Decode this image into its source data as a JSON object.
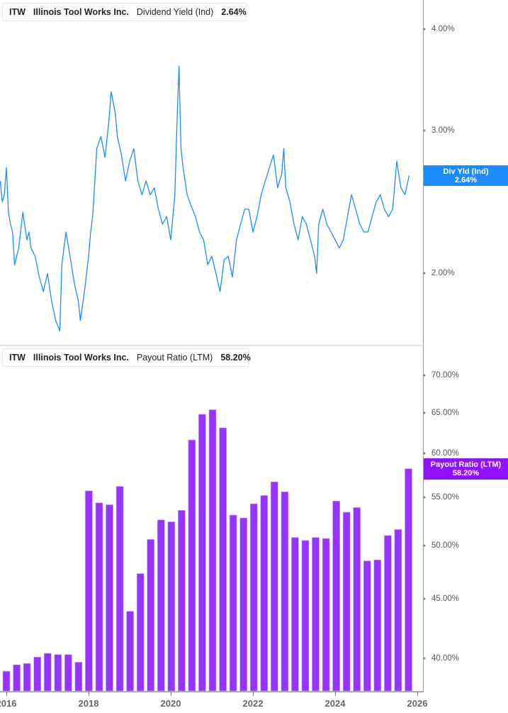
{
  "colors": {
    "yield": "#1a8cff",
    "payout": "#9633ff",
    "flag_yield": "#1a8cff",
    "flag_payout": "#9013fe"
  },
  "top_legend": {
    "ticker": "ITW",
    "company": "Illinois Tool Works Inc.",
    "metric": "Dividend Yield (Ind)",
    "value": "2.64%"
  },
  "bottom_legend": {
    "ticker": "ITW",
    "company": "Illinois Tool Works Inc.",
    "metric": "Payout Ratio (LTM)",
    "value": "58.20%"
  },
  "top_flag": {
    "line1": "Div Yld (Ind)",
    "line2": "2.64%"
  },
  "bottom_flag": {
    "line1": "Payout Ratio (LTM)",
    "line2": "58.20%"
  },
  "top_axis": {
    "ticks": [
      {
        "label": "4.00%",
        "value": 4.0
      },
      {
        "label": "3.00%",
        "value": 3.0
      },
      {
        "label": "2.00%",
        "value": 2.0
      }
    ]
  },
  "bottom_axis": {
    "ticks": [
      {
        "label": "70.00%",
        "value": 70
      },
      {
        "label": "65.00%",
        "value": 65
      },
      {
        "label": "60.00%",
        "value": 60
      },
      {
        "label": "55.00%",
        "value": 55
      },
      {
        "label": "50.00%",
        "value": 50
      },
      {
        "label": "45.00%",
        "value": 45
      },
      {
        "label": "40.00%",
        "value": 40
      }
    ]
  },
  "x_axis": {
    "ticks": [
      "2016",
      "2018",
      "2020",
      "2022",
      "2024",
      "2026"
    ]
  },
  "chart_data": [
    {
      "type": "line",
      "title": "ITW Illinois Tool Works Inc. Dividend Yield (Ind)",
      "xlabel": "",
      "ylabel": "Dividend Yield (Ind)",
      "yscale": "log",
      "ylim": [
        1.5,
        4.3
      ],
      "xlim": [
        2015.85,
        2026.1
      ],
      "grid": false,
      "legend_position": "top-left",
      "last_value": 2.64,
      "series": [
        {
          "name": "Dividend Yield (Ind)",
          "x": [
            2015.85,
            2015.9,
            2015.95,
            2016.0,
            2016.05,
            2016.1,
            2016.15,
            2016.2,
            2016.3,
            2016.4,
            2016.5,
            2016.55,
            2016.6,
            2016.7,
            2016.8,
            2016.9,
            2017.0,
            2017.1,
            2017.2,
            2017.3,
            2017.35,
            2017.45,
            2017.55,
            2017.65,
            2017.75,
            2017.8,
            2017.9,
            2018.0,
            2018.05,
            2018.1,
            2018.2,
            2018.3,
            2018.4,
            2018.5,
            2018.55,
            2018.65,
            2018.7,
            2018.8,
            2018.9,
            2019.0,
            2019.1,
            2019.2,
            2019.3,
            2019.4,
            2019.5,
            2019.6,
            2019.7,
            2019.8,
            2019.9,
            2020.0,
            2020.1,
            2020.15,
            2020.2,
            2020.25,
            2020.3,
            2020.4,
            2020.5,
            2020.6,
            2020.7,
            2020.8,
            2020.9,
            2021.0,
            2021.1,
            2021.2,
            2021.3,
            2021.4,
            2021.5,
            2021.6,
            2021.7,
            2021.8,
            2021.9,
            2022.0,
            2022.1,
            2022.2,
            2022.3,
            2022.4,
            2022.5,
            2022.6,
            2022.7,
            2022.75,
            2022.8,
            2022.9,
            2023.0,
            2023.1,
            2023.2,
            2023.3,
            2023.4,
            2023.5,
            2023.55,
            2023.6,
            2023.7,
            2023.8,
            2023.9,
            2024.0,
            2024.1,
            2024.2,
            2024.3,
            2024.4,
            2024.5,
            2024.6,
            2024.7,
            2024.8,
            2024.9,
            2025.0,
            2025.1,
            2025.2,
            2025.3,
            2025.4,
            2025.5,
            2025.6,
            2025.7,
            2025.8
          ],
          "y": [
            2.6,
            2.45,
            2.5,
            2.7,
            2.38,
            2.3,
            2.25,
            2.05,
            2.15,
            2.38,
            2.2,
            2.25,
            2.15,
            2.1,
            1.98,
            1.9,
            2.0,
            1.85,
            1.75,
            1.7,
            2.05,
            2.25,
            2.1,
            1.95,
            1.85,
            1.75,
            1.9,
            2.1,
            2.25,
            2.35,
            2.85,
            2.95,
            2.78,
            3.1,
            3.35,
            3.15,
            2.95,
            2.8,
            2.6,
            2.75,
            2.85,
            2.6,
            2.5,
            2.6,
            2.5,
            2.55,
            2.4,
            2.3,
            2.35,
            2.2,
            2.5,
            3.05,
            3.6,
            2.85,
            2.7,
            2.5,
            2.42,
            2.35,
            2.25,
            2.2,
            2.05,
            2.1,
            2.0,
            1.9,
            2.08,
            2.1,
            1.98,
            2.2,
            2.3,
            2.4,
            2.4,
            2.25,
            2.35,
            2.5,
            2.6,
            2.7,
            2.8,
            2.55,
            2.65,
            2.85,
            2.55,
            2.45,
            2.3,
            2.2,
            2.35,
            2.3,
            2.2,
            2.1,
            2.0,
            2.3,
            2.4,
            2.3,
            2.25,
            2.2,
            2.15,
            2.2,
            2.35,
            2.5,
            2.4,
            2.3,
            2.25,
            2.25,
            2.35,
            2.45,
            2.5,
            2.4,
            2.35,
            2.4,
            2.75,
            2.55,
            2.5,
            2.64
          ]
        }
      ]
    },
    {
      "type": "bar",
      "title": "ITW Illinois Tool Works Inc. Payout Ratio (LTM)",
      "xlabel": "",
      "ylabel": "Payout Ratio (LTM)",
      "yscale": "log",
      "ylim": [
        37.5,
        72
      ],
      "grid": false,
      "legend_position": "top-left",
      "last_value": 58.2,
      "categories": [
        "2015 Q4",
        "2016 Q1",
        "2016 Q2",
        "2016 Q3",
        "2016 Q4",
        "2017 Q1",
        "2017 Q2",
        "2017 Q3",
        "2017 Q4",
        "2018 Q1",
        "2018 Q2",
        "2018 Q3",
        "2018 Q4",
        "2019 Q1",
        "2019 Q2",
        "2019 Q3",
        "2019 Q4",
        "2020 Q1",
        "2020 Q2",
        "2020 Q3",
        "2020 Q4",
        "2021 Q1",
        "2021 Q2",
        "2021 Q3",
        "2021 Q4",
        "2022 Q1",
        "2022 Q2",
        "2022 Q3",
        "2022 Q4",
        "2023 Q1",
        "2023 Q2",
        "2023 Q3",
        "2023 Q4",
        "2024 Q1",
        "2024 Q2",
        "2024 Q3",
        "2024 Q4",
        "2025 Q1",
        "2025 Q2",
        "2025 Q3"
      ],
      "values": [
        39.0,
        39.5,
        39.6,
        40.1,
        40.4,
        40.3,
        40.3,
        39.7,
        55.7,
        54.4,
        54.2,
        56.2,
        43.9,
        47.3,
        50.6,
        52.6,
        52.4,
        53.6,
        61.6,
        64.8,
        65.4,
        63.1,
        53.1,
        52.8,
        54.3,
        55.2,
        56.7,
        55.6,
        50.8,
        50.5,
        50.8,
        50.7,
        54.6,
        53.4,
        53.9,
        48.5,
        48.6,
        51.0,
        51.6,
        58.2
      ]
    }
  ]
}
